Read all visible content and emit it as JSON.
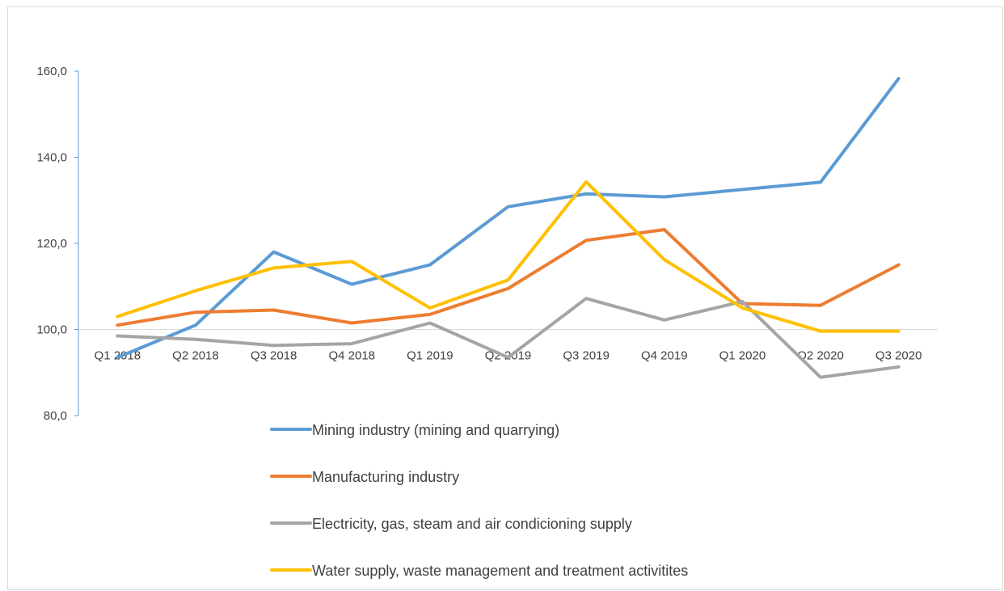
{
  "chart_data": {
    "type": "line",
    "title": "",
    "xlabel": "",
    "ylabel": "",
    "categories": [
      "Q1 2018",
      "Q2 2018",
      "Q3 2018",
      "Q4 2018",
      "Q1 2019",
      "Q2 2019",
      "Q3 2019",
      "Q4 2019",
      "Q1 2020",
      "Q2 2020",
      "Q3 2020"
    ],
    "ylim": [
      80,
      160
    ],
    "y_ticks": [
      "80,0",
      "100,0",
      "120,0",
      "140,0",
      "160,0"
    ],
    "x_axis_crosses_at": 100,
    "grid": false,
    "legend_position": "bottom",
    "series": [
      {
        "name": "Mining industry (mining and quarrying)",
        "color": "#5b9bd5",
        "values": [
          93.5,
          101.0,
          118.0,
          110.5,
          115.0,
          128.5,
          131.5,
          130.8,
          132.5,
          134.2,
          158.3
        ]
      },
      {
        "name": "Manufacturing industry",
        "color": "#ed7d31",
        "values": [
          101.0,
          104.0,
          104.5,
          101.5,
          103.5,
          109.5,
          120.7,
          123.2,
          106.0,
          105.6,
          115.0
        ]
      },
      {
        "name": "Electricity, gas, steam and air condicioning supply",
        "color": "#a5a5a5",
        "values": [
          98.5,
          97.7,
          96.3,
          96.7,
          101.5,
          93.5,
          107.2,
          102.2,
          106.5,
          88.9,
          91.3
        ]
      },
      {
        "name": "Water supply, waste management and treatment activitites",
        "color": "#ffc000",
        "values": [
          103.0,
          109.0,
          114.3,
          115.8,
          105.0,
          111.5,
          134.3,
          116.2,
          105.0,
          99.6,
          99.6
        ]
      }
    ]
  }
}
